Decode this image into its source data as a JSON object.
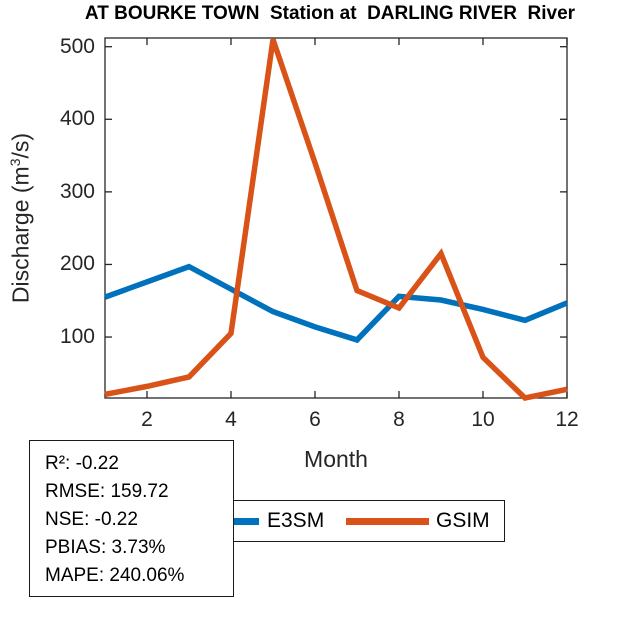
{
  "chart_data": {
    "type": "line",
    "title": "AT BOURKE TOWN  Station at  DARLING RIVER  River",
    "xlabel": "Month",
    "ylabel": "Discharge (m³/s)",
    "ylabel_parts": {
      "prefix": "Discharge (m",
      "sup": "3",
      "suffix": "/s)"
    },
    "x": [
      1,
      2,
      3,
      4,
      5,
      6,
      7,
      8,
      9,
      10,
      11,
      12
    ],
    "series": [
      {
        "name": "E3SM",
        "color": "#0072BD",
        "values": [
          155,
          176,
          197,
          166,
          135,
          114,
          96,
          156,
          151,
          138,
          123,
          147
        ]
      },
      {
        "name": "GSIM",
        "color": "#D95319",
        "values": [
          21,
          32,
          45,
          105,
          510,
          340,
          164,
          140,
          215,
          72,
          16,
          28
        ]
      }
    ],
    "xticks": [
      2,
      4,
      6,
      8,
      10,
      12
    ],
    "yticks": [
      100,
      200,
      300,
      400,
      500
    ],
    "xlim": [
      1,
      12
    ],
    "ylim": [
      16,
      512
    ],
    "grid": false,
    "legend_position": "below-horizontal",
    "axis_color": "#262626"
  },
  "stats_box": {
    "lines": [
      "R²: -0.22",
      "RMSE: 159.72",
      "NSE: -0.22",
      "PBIAS: 3.73%",
      "MAPE: 240.06%"
    ]
  },
  "legend": {
    "items": [
      {
        "label": "E3SM",
        "color": "#0072BD"
      },
      {
        "label": "GSIM",
        "color": "#D95319"
      }
    ]
  }
}
